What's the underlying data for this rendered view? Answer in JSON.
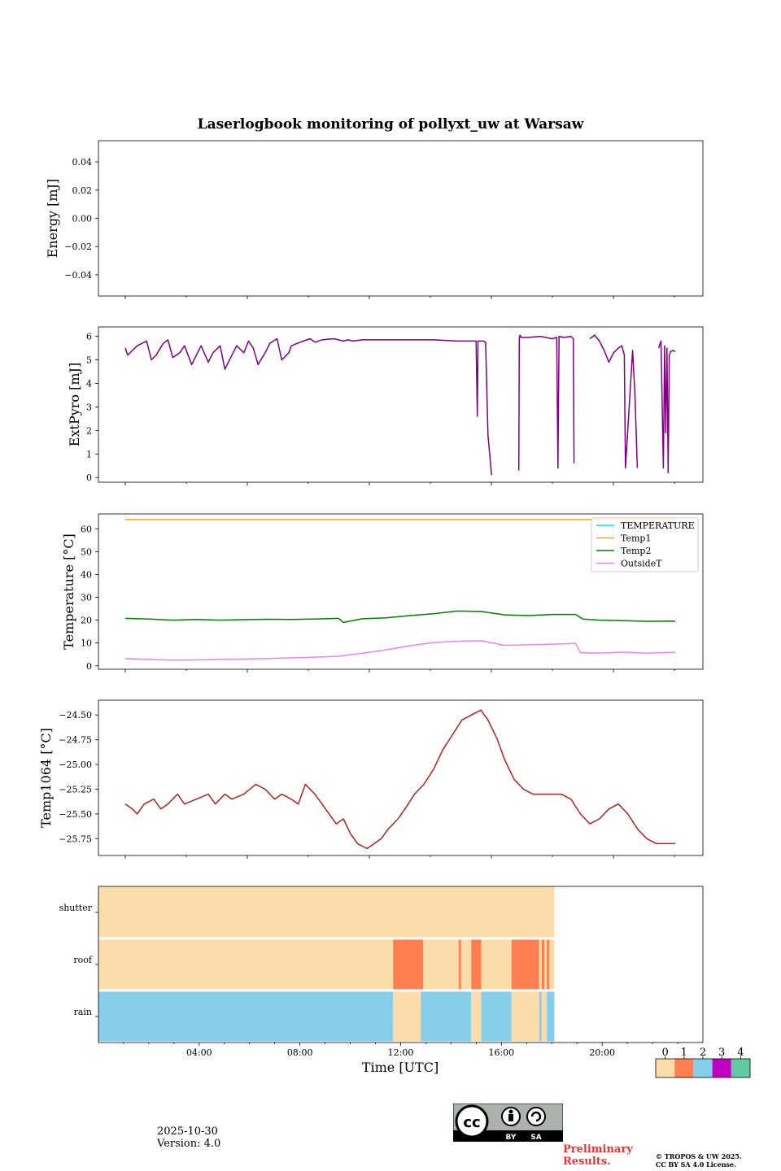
{
  "figure": {
    "title": "Laserlogbook monitoring of pollyxt_uw at Warsaw",
    "date": "2025-10-30",
    "version": "Version: 4.0",
    "preliminary": "Preliminary Results.",
    "copyright_line1": "© TROPOS & UW 2025.",
    "copyright_line2": "CC BY SA 4.0 License.",
    "cc_label_by": "BY",
    "cc_label_sa": "SA"
  },
  "colors": {
    "extpyro": "#800080",
    "temperature": "#00e5ee",
    "temp1": "#ffa500",
    "temp2": "#008000",
    "outsideT": "#ee82ee",
    "temp1064": "#b22222",
    "status": [
      "#fddcab",
      "#ff7f50",
      "#87ceeb",
      "#c000c0",
      "#5fc9a2"
    ]
  },
  "chart_data": [
    {
      "type": "line",
      "panel": "energy",
      "ylabel": "Energy [mJ]",
      "ylim": [
        -0.055,
        0.055
      ],
      "yticks": [
        "0.04",
        "0.02",
        "0.00",
        "−0.02",
        "−0.04"
      ],
      "ytick_values": [
        0.04,
        0.02,
        0.0,
        -0.02,
        -0.04
      ],
      "series": []
    },
    {
      "type": "line",
      "panel": "extpyro",
      "ylabel": "ExtPyro [mJ]",
      "ylim": [
        -0.2,
        6.4
      ],
      "yticks": [
        "6",
        "5",
        "4",
        "3",
        "2",
        "1",
        "0"
      ],
      "ytick_values": [
        6,
        5,
        4,
        3,
        2,
        1,
        0
      ],
      "series": [
        {
          "name": "ExtPyro",
          "x": [
            0.0,
            0.1,
            0.5,
            0.9,
            1.1,
            1.3,
            1.6,
            1.8,
            2.0,
            2.3,
            2.5,
            2.8,
            3.0,
            3.2,
            3.5,
            3.7,
            4.0,
            4.2,
            4.5,
            4.7,
            5.0,
            5.2,
            5.4,
            5.6,
            5.9,
            6.1,
            6.4,
            6.6,
            6.9,
            7.0,
            7.5,
            7.8,
            8.0,
            8.3,
            8.8,
            9.2,
            9.4,
            9.6,
            10.0,
            10.5,
            11.0,
            12.0,
            13.0,
            14.0,
            14.8,
            14.85,
            14.88,
            14.9,
            15.0,
            15.1,
            15.2,
            15.3,
            15.45
          ],
          "y": [
            5.5,
            5.2,
            5.6,
            5.8,
            5.0,
            5.2,
            5.7,
            5.85,
            5.1,
            5.3,
            5.6,
            4.8,
            5.2,
            5.6,
            4.9,
            5.3,
            5.6,
            4.6,
            5.2,
            5.6,
            5.3,
            5.8,
            5.5,
            4.8,
            5.3,
            5.7,
            5.9,
            5.0,
            5.3,
            5.6,
            5.8,
            5.9,
            5.75,
            5.85,
            5.9,
            5.8,
            5.85,
            5.8,
            5.85,
            5.85,
            5.85,
            5.85,
            5.85,
            5.8,
            5.8,
            2.6,
            5.8,
            5.8,
            5.8,
            5.8,
            5.75,
            1.8,
            0.1
          ]
        },
        {
          "name": "ExtPyro",
          "x": [
            16.6,
            16.62,
            16.65,
            16.7,
            17.0,
            17.5,
            18.0,
            18.2,
            18.25,
            18.3,
            18.5,
            18.8,
            18.9,
            18.93
          ],
          "y": [
            0.3,
            5.9,
            6.05,
            5.95,
            5.95,
            6.0,
            5.9,
            5.95,
            0.4,
            6.0,
            5.95,
            6.0,
            5.9,
            0.6
          ]
        },
        {
          "name": "ExtPyro",
          "x": [
            19.6,
            19.8,
            20.0,
            20.2,
            20.4,
            20.6,
            20.8,
            20.95,
            21.05,
            21.1,
            21.4,
            21.5,
            21.6
          ],
          "y": [
            5.9,
            6.05,
            5.8,
            5.4,
            4.9,
            5.3,
            5.5,
            5.6,
            5.2,
            0.4,
            5.4,
            3.5,
            0.4
          ]
        },
        {
          "name": "ExtPyro",
          "x": [
            22.5,
            22.6,
            22.7,
            22.75,
            22.8,
            22.85,
            22.9,
            22.95,
            23.0,
            23.1,
            23.2
          ],
          "y": [
            5.5,
            5.8,
            0.4,
            5.6,
            1.9,
            5.5,
            0.2,
            5.2,
            5.35,
            5.4,
            5.35
          ]
        }
      ]
    },
    {
      "type": "line",
      "panel": "temperature",
      "ylabel": "Temperature [°C]",
      "ylim": [
        -1.5,
        66.5
      ],
      "yticks": [
        "60",
        "50",
        "40",
        "30",
        "20",
        "10",
        "0"
      ],
      "ytick_values": [
        60,
        50,
        40,
        30,
        20,
        10,
        0
      ],
      "legend": {
        "placement": "top-right",
        "entries": [
          "TEMPERATURE",
          "Temp1",
          "Temp2",
          "OutsideT"
        ]
      },
      "series": [
        {
          "name": "TEMPERATURE",
          "x": [],
          "y": []
        },
        {
          "name": "Temp1",
          "x": [
            0.0,
            23.2
          ],
          "y": [
            64,
            64
          ]
        },
        {
          "name": "Temp2",
          "x": [
            0.0,
            1.0,
            2.0,
            3.0,
            4.0,
            5.0,
            6.0,
            7.0,
            8.0,
            9.0,
            9.2,
            10.0,
            11.0,
            12.0,
            13.0,
            14.0,
            15.0,
            16.0,
            17.0,
            18.0,
            19.0,
            19.3,
            20.0,
            21.0,
            22.0,
            23.0,
            23.2
          ],
          "y": [
            20.8,
            20.5,
            20.0,
            20.3,
            20.0,
            20.2,
            20.4,
            20.3,
            20.5,
            20.8,
            19.0,
            20.6,
            21.0,
            22.0,
            22.8,
            24.0,
            23.8,
            22.3,
            22.0,
            22.5,
            22.5,
            20.5,
            20.0,
            19.8,
            19.5,
            19.6,
            19.5
          ]
        },
        {
          "name": "OutsideT",
          "x": [
            0.0,
            1.0,
            2.0,
            3.0,
            4.0,
            5.0,
            6.0,
            7.0,
            8.0,
            9.0,
            10.0,
            11.0,
            12.0,
            13.0,
            14.0,
            15.0,
            16.0,
            17.0,
            18.0,
            19.0,
            19.2,
            20.0,
            21.0,
            22.0,
            23.0,
            23.2
          ],
          "y": [
            3.2,
            2.8,
            2.5,
            2.6,
            2.8,
            3.0,
            3.2,
            3.5,
            3.8,
            4.2,
            5.5,
            7.0,
            8.8,
            10.2,
            10.8,
            11.0,
            9.0,
            9.2,
            9.5,
            9.8,
            5.8,
            5.5,
            6.0,
            5.5,
            5.9,
            6.0
          ]
        }
      ]
    },
    {
      "type": "line",
      "panel": "temp1064",
      "ylabel": "Temp1064 [°C]",
      "ylim": [
        -25.92,
        -24.35
      ],
      "yticks": [
        "−24.50",
        "−24.75",
        "−25.00",
        "−25.25",
        "−25.50",
        "−25.75"
      ],
      "ytick_values": [
        -24.5,
        -24.75,
        -25.0,
        -25.25,
        -25.5,
        -25.75
      ],
      "series": [
        {
          "name": "Temp1064",
          "x": [
            0.0,
            0.3,
            0.5,
            0.8,
            1.2,
            1.5,
            1.8,
            2.2,
            2.5,
            3.0,
            3.5,
            3.8,
            4.2,
            4.5,
            5.0,
            5.5,
            5.9,
            6.3,
            6.6,
            7.0,
            7.3,
            7.6,
            8.0,
            8.3,
            8.6,
            8.9,
            9.2,
            9.5,
            9.8,
            10.2,
            10.5,
            10.8,
            11.1,
            11.5,
            11.8,
            12.2,
            12.6,
            13.0,
            13.4,
            13.8,
            14.2,
            14.6,
            15.0,
            15.3,
            15.7,
            16.0,
            16.4,
            16.8,
            17.2,
            17.6,
            18.0,
            18.4,
            18.8,
            19.2,
            19.6,
            20.0,
            20.4,
            20.8,
            21.2,
            21.6,
            22.0,
            22.4,
            22.8,
            23.2
          ],
          "y": [
            -25.4,
            -25.45,
            -25.5,
            -25.4,
            -25.35,
            -25.45,
            -25.4,
            -25.3,
            -25.4,
            -25.35,
            -25.3,
            -25.4,
            -25.3,
            -25.35,
            -25.3,
            -25.2,
            -25.25,
            -25.35,
            -25.3,
            -25.35,
            -25.4,
            -25.2,
            -25.3,
            -25.4,
            -25.5,
            -25.6,
            -25.55,
            -25.7,
            -25.8,
            -25.85,
            -25.8,
            -25.75,
            -25.65,
            -25.55,
            -25.45,
            -25.3,
            -25.2,
            -25.05,
            -24.85,
            -24.7,
            -24.55,
            -24.5,
            -24.45,
            -24.55,
            -24.75,
            -24.95,
            -25.15,
            -25.25,
            -25.3,
            -25.3,
            -25.3,
            -25.3,
            -25.35,
            -25.5,
            -25.6,
            -25.55,
            -25.45,
            -25.4,
            -25.5,
            -25.65,
            -25.75,
            -25.8,
            -25.8,
            -25.8
          ]
        }
      ]
    },
    {
      "type": "heatmap",
      "panel": "status",
      "rows": [
        "shutter",
        "roof",
        "rain"
      ],
      "xlabel": "Time [UTC]",
      "xlim": [
        0,
        24
      ],
      "xticks": [
        "04:00",
        "08:00",
        "12:00",
        "16:00",
        "20:00"
      ],
      "xtick_values": [
        4,
        8,
        12,
        16,
        20
      ],
      "segments": {
        "shutter": [
          [
            0.0,
            18.1,
            0
          ]
        ],
        "roof": [
          [
            0.0,
            11.7,
            0
          ],
          [
            11.7,
            12.9,
            1
          ],
          [
            12.9,
            14.3,
            0
          ],
          [
            14.3,
            14.4,
            1
          ],
          [
            14.4,
            14.8,
            0
          ],
          [
            14.8,
            15.2,
            1
          ],
          [
            15.2,
            16.4,
            0
          ],
          [
            16.4,
            17.5,
            1
          ],
          [
            17.5,
            17.6,
            0
          ],
          [
            17.6,
            17.7,
            1
          ],
          [
            17.7,
            17.8,
            0
          ],
          [
            17.8,
            17.9,
            1
          ],
          [
            17.9,
            18.1,
            0
          ]
        ],
        "rain": [
          [
            0.0,
            11.7,
            2
          ],
          [
            11.7,
            12.8,
            0
          ],
          [
            12.8,
            14.8,
            2
          ],
          [
            14.8,
            15.2,
            0
          ],
          [
            15.2,
            16.4,
            2
          ],
          [
            16.4,
            17.5,
            0
          ],
          [
            17.5,
            17.6,
            2
          ],
          [
            17.6,
            17.8,
            0
          ],
          [
            17.8,
            18.1,
            2
          ]
        ]
      },
      "colorbar": {
        "ticks": [
          "0",
          "1",
          "2",
          "3",
          "4"
        ]
      }
    }
  ]
}
